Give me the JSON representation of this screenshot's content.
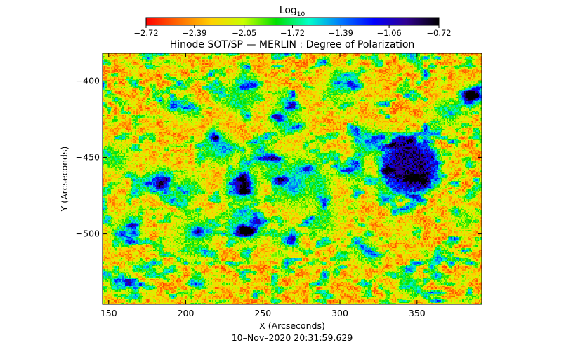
{
  "chart_data": {
    "type": "heatmap",
    "title": "Hinode SOT/SP — MERLIN : Degree of Polarization",
    "xlabel": "X (Arcseconds)",
    "ylabel": "Y (Arcseconds)",
    "timestamp": "10–Nov–2020 20:31:59.629",
    "xlim": [
      146,
      392
    ],
    "ylim": [
      -546,
      -382
    ],
    "xticks": [
      150,
      200,
      250,
      300,
      350
    ],
    "xtick_labels": [
      "150",
      "200",
      "250",
      "300",
      "350"
    ],
    "yticks": [
      -400,
      -450,
      -500
    ],
    "ytick_labels": [
      "−400",
      "−450",
      "−500"
    ],
    "colorbar": {
      "title_base": "Log",
      "title_sub": "10",
      "range": [
        -2.72,
        -0.72
      ],
      "ticks": [
        -2.72,
        -2.39,
        -2.05,
        -1.72,
        -1.39,
        -1.06,
        -0.72
      ],
      "tick_labels": [
        "−2.72",
        "−2.39",
        "−2.05",
        "−1.72",
        "−1.39",
        "−1.06",
        "−0.72"
      ],
      "colormap": [
        "#ff0000",
        "#ff6a00",
        "#ffd000",
        "#c8ff00",
        "#00e000",
        "#00ffc8",
        "#0078ff",
        "#0000ff",
        "#300090",
        "#000000"
      ]
    },
    "background_level": -2.45,
    "features": [
      {
        "kind": "sunspot",
        "x": 345,
        "y": -456,
        "radius": 17,
        "umbra_radius": 10,
        "level": -0.9
      },
      {
        "kind": "plage",
        "x": 275,
        "y": -466,
        "radius": 14,
        "level": -1.35
      },
      {
        "kind": "plage",
        "x": 222,
        "y": -444,
        "radius": 8,
        "level": -1.3
      },
      {
        "kind": "plage",
        "x": 237,
        "y": -470,
        "radius": 9,
        "level": -1.3
      },
      {
        "kind": "plage",
        "x": 182,
        "y": -465,
        "radius": 8,
        "level": -1.45
      },
      {
        "kind": "plage",
        "x": 205,
        "y": -500,
        "radius": 10,
        "level": -1.4
      },
      {
        "kind": "plage",
        "x": 240,
        "y": -495,
        "radius": 9,
        "level": -1.4
      },
      {
        "kind": "plage",
        "x": 320,
        "y": -440,
        "radius": 9,
        "level": -1.5
      },
      {
        "kind": "plage",
        "x": 265,
        "y": -425,
        "radius": 10,
        "level": -1.65
      },
      {
        "kind": "plage",
        "x": 235,
        "y": -410,
        "radius": 10,
        "level": -1.6
      },
      {
        "kind": "plage",
        "x": 300,
        "y": -405,
        "radius": 9,
        "level": -1.6
      },
      {
        "kind": "plage",
        "x": 385,
        "y": -410,
        "radius": 6,
        "level": -1.3
      },
      {
        "kind": "network",
        "x": 155,
        "y": -450,
        "radius": 8,
        "level": -1.7
      },
      {
        "kind": "network",
        "x": 160,
        "y": -495,
        "radius": 9,
        "level": -1.75
      },
      {
        "kind": "network",
        "x": 200,
        "y": -470,
        "radius": 9,
        "level": -1.7
      },
      {
        "kind": "network",
        "x": 255,
        "y": -455,
        "radius": 11,
        "level": -1.7
      },
      {
        "kind": "network",
        "x": 290,
        "y": -490,
        "radius": 10,
        "level": -1.8
      },
      {
        "kind": "network",
        "x": 315,
        "y": -510,
        "radius": 8,
        "level": -1.8
      },
      {
        "kind": "network",
        "x": 330,
        "y": -470,
        "radius": 8,
        "level": -1.75
      },
      {
        "kind": "network",
        "x": 370,
        "y": -420,
        "radius": 9,
        "level": -1.8
      },
      {
        "kind": "network",
        "x": 380,
        "y": -490,
        "radius": 7,
        "level": -1.85
      },
      {
        "kind": "network",
        "x": 265,
        "y": -505,
        "radius": 9,
        "level": -1.85
      },
      {
        "kind": "network",
        "x": 200,
        "y": -420,
        "radius": 8,
        "level": -1.8
      },
      {
        "kind": "network",
        "x": 160,
        "y": -530,
        "radius": 6,
        "level": -1.9
      },
      {
        "kind": "network",
        "x": 345,
        "y": -535,
        "radius": 7,
        "level": -1.9
      },
      {
        "kind": "network",
        "x": 310,
        "y": -460,
        "radius": 8,
        "level": -1.75
      }
    ]
  }
}
